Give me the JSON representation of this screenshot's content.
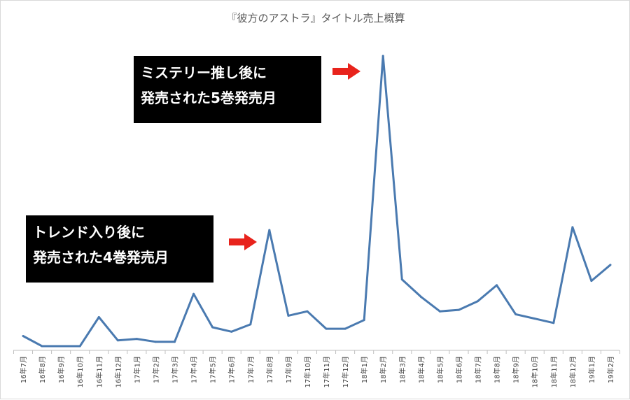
{
  "chart_data": {
    "type": "line",
    "title": "『彼方のアストラ』タイトル売上概算",
    "xlabel": "",
    "ylabel": "",
    "grid": false,
    "legend": "none",
    "categories": [
      "16年7月",
      "16年8月",
      "16年9月",
      "16年10月",
      "16年11月",
      "16年12月",
      "17年1月",
      "17年2月",
      "17年3月",
      "17年4月",
      "17年5月",
      "17年6月",
      "17年7月",
      "17年8月",
      "17年9月",
      "17年10月",
      "17年11月",
      "17年12月",
      "18年1月",
      "18年2月",
      "18年3月",
      "18年4月",
      "18年5月",
      "18年6月",
      "18年7月",
      "18年8月",
      "18年9月",
      "18年10月",
      "18年11月",
      "18年12月",
      "19年1月",
      "19年2月"
    ],
    "series": [
      {
        "color": "#4a7ab0",
        "values": [
          3.5,
          0,
          0,
          0,
          10,
          2,
          2.5,
          1.5,
          1.5,
          18,
          6.5,
          5,
          7.5,
          40,
          10.5,
          12,
          6,
          6,
          9,
          100,
          23,
          17,
          12,
          12.5,
          15.5,
          21,
          11,
          9.5,
          8,
          41,
          22.5,
          28
        ]
      }
    ],
    "ylim": [
      0,
      100
    ],
    "annotations": [
      {
        "lines": [
          "ミステリー推し後に",
          "発売された5巻発売月"
        ],
        "target": "18年2月",
        "arrow_color": "#e8231c"
      },
      {
        "lines": [
          "トレンド入り後に",
          "発売された4巻発売月"
        ],
        "target": "17年8月",
        "arrow_color": "#e8231c"
      }
    ]
  }
}
